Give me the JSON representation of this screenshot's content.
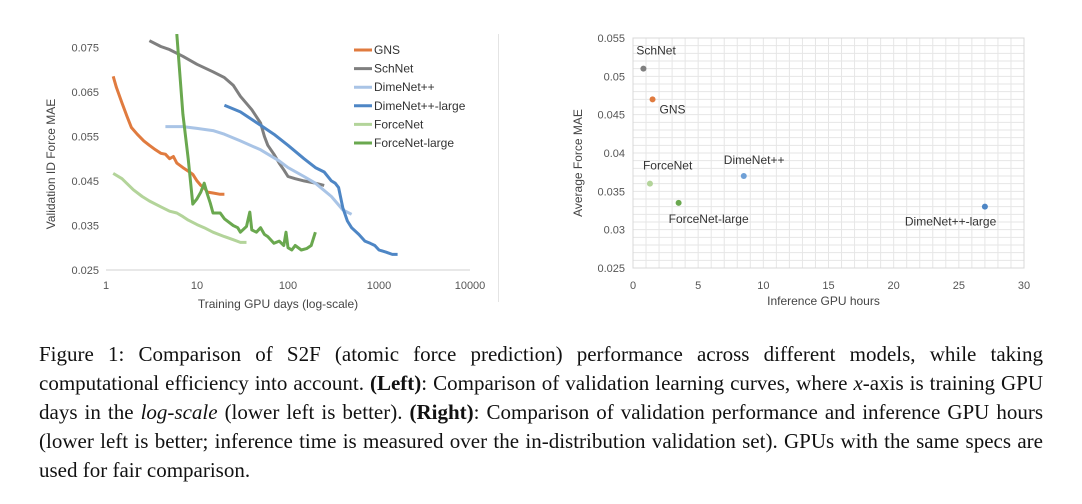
{
  "chart_data": [
    {
      "type": "line",
      "title": "",
      "xlabel": "Training GPU days (log-scale)",
      "ylabel": "Validation ID Force MAE",
      "xscale": "log",
      "xlim": [
        1,
        10000
      ],
      "ylim": [
        0.025,
        0.078
      ],
      "x_ticks": [
        "1",
        "10",
        "100",
        "1000",
        "10000"
      ],
      "y_ticks": [
        "0.025",
        "0.035",
        "0.045",
        "0.055",
        "0.065",
        "0.075"
      ],
      "legend_position": "top-right",
      "series": [
        {
          "name": "GNS",
          "color": "#e07b3f",
          "width": 3,
          "points": [
            [
              1.2,
              0.0685
            ],
            [
              1.3,
              0.066
            ],
            [
              1.5,
              0.0625
            ],
            [
              1.7,
              0.0595
            ],
            [
              1.9,
              0.057
            ],
            [
              2.2,
              0.0555
            ],
            [
              2.6,
              0.054
            ],
            [
              3.0,
              0.053
            ],
            [
              3.5,
              0.052
            ],
            [
              4.0,
              0.0512
            ],
            [
              4.5,
              0.051
            ],
            [
              5,
              0.05
            ],
            [
              5.5,
              0.0505
            ],
            [
              6,
              0.049
            ],
            [
              7,
              0.048
            ],
            [
              8,
              0.0472
            ],
            [
              9,
              0.0465
            ],
            [
              10,
              0.045
            ],
            [
              11,
              0.044
            ],
            [
              12,
              0.0435
            ],
            [
              13,
              0.0425
            ],
            [
              15,
              0.0423
            ],
            [
              18,
              0.042
            ],
            [
              20,
              0.042
            ]
          ]
        },
        {
          "name": "SchNet",
          "color": "#7f7f7f",
          "width": 3,
          "points": [
            [
              3,
              0.0765
            ],
            [
              4,
              0.0752
            ],
            [
              5,
              0.0745
            ],
            [
              7,
              0.073
            ],
            [
              10,
              0.0712
            ],
            [
              15,
              0.0695
            ],
            [
              20,
              0.0682
            ],
            [
              25,
              0.0665
            ],
            [
              30,
              0.064
            ],
            [
              40,
              0.061
            ],
            [
              50,
              0.058
            ],
            [
              55,
              0.055
            ],
            [
              60,
              0.053
            ],
            [
              70,
              0.051
            ],
            [
              80,
              0.049
            ],
            [
              90,
              0.0475
            ],
            [
              100,
              0.046
            ],
            [
              120,
              0.0455
            ],
            [
              150,
              0.045
            ],
            [
              200,
              0.0445
            ],
            [
              250,
              0.044
            ]
          ]
        },
        {
          "name": "DimeNet++",
          "color": "#a9c4e6",
          "width": 3,
          "points": [
            [
              4.5,
              0.0572
            ],
            [
              7,
              0.0572
            ],
            [
              10,
              0.0568
            ],
            [
              15,
              0.0563
            ],
            [
              20,
              0.0555
            ],
            [
              30,
              0.054
            ],
            [
              50,
              0.052
            ],
            [
              80,
              0.0495
            ],
            [
              100,
              0.048
            ],
            [
              150,
              0.046
            ],
            [
              200,
              0.0445
            ],
            [
              300,
              0.0415
            ],
            [
              400,
              0.0385
            ],
            [
              500,
              0.0375
            ]
          ]
        },
        {
          "name": "DimeNet++-large",
          "color": "#4e86c5",
          "width": 3,
          "points": [
            [
              20,
              0.062
            ],
            [
              30,
              0.0605
            ],
            [
              50,
              0.0575
            ],
            [
              70,
              0.0555
            ],
            [
              100,
              0.053
            ],
            [
              150,
              0.05
            ],
            [
              200,
              0.048
            ],
            [
              250,
              0.047
            ],
            [
              300,
              0.045
            ],
            [
              330,
              0.0445
            ],
            [
              360,
              0.0435
            ],
            [
              400,
              0.039
            ],
            [
              450,
              0.036
            ],
            [
              500,
              0.0345
            ],
            [
              600,
              0.033
            ],
            [
              700,
              0.0315
            ],
            [
              800,
              0.031
            ],
            [
              900,
              0.0305
            ],
            [
              1000,
              0.0295
            ],
            [
              1200,
              0.029
            ],
            [
              1400,
              0.0285
            ],
            [
              1600,
              0.0285
            ]
          ]
        },
        {
          "name": "ForceNet",
          "color": "#b3d49a",
          "width": 3,
          "points": [
            [
              1.2,
              0.0467
            ],
            [
              1.5,
              0.0455
            ],
            [
              2,
              0.043
            ],
            [
              2.5,
              0.0415
            ],
            [
              3,
              0.0405
            ],
            [
              4,
              0.0392
            ],
            [
              5,
              0.0382
            ],
            [
              6,
              0.0378
            ],
            [
              7,
              0.037
            ],
            [
              8,
              0.0362
            ],
            [
              10,
              0.0352
            ],
            [
              12,
              0.0345
            ],
            [
              15,
              0.0335
            ],
            [
              20,
              0.0325
            ],
            [
              25,
              0.0318
            ],
            [
              30,
              0.0312
            ],
            [
              35,
              0.0312
            ]
          ]
        },
        {
          "name": "ForceNet-large",
          "color": "#6aa84f",
          "width": 3,
          "points": [
            [
              6,
              0.078
            ],
            [
              7,
              0.06
            ],
            [
              8,
              0.05
            ],
            [
              9,
              0.0398
            ],
            [
              10,
              0.041
            ],
            [
              11,
              0.0425
            ],
            [
              12,
              0.0445
            ],
            [
              13,
              0.042
            ],
            [
              14,
              0.04
            ],
            [
              15,
              0.0378
            ],
            [
              18,
              0.0378
            ],
            [
              20,
              0.0365
            ],
            [
              25,
              0.035
            ],
            [
              28,
              0.0345
            ],
            [
              30,
              0.0335
            ],
            [
              35,
              0.0348
            ],
            [
              38,
              0.038
            ],
            [
              40,
              0.034
            ],
            [
              45,
              0.0335
            ],
            [
              50,
              0.0345
            ],
            [
              55,
              0.033
            ],
            [
              60,
              0.0325
            ],
            [
              70,
              0.031
            ],
            [
              80,
              0.0315
            ],
            [
              90,
              0.0305
            ],
            [
              95,
              0.0335
            ],
            [
              100,
              0.03
            ],
            [
              110,
              0.0295
            ],
            [
              120,
              0.0305
            ],
            [
              140,
              0.0295
            ],
            [
              160,
              0.0298
            ],
            [
              180,
              0.0305
            ],
            [
              200,
              0.0335
            ]
          ]
        }
      ]
    },
    {
      "type": "scatter",
      "title": "",
      "xlabel": "Inference GPU hours",
      "ylabel": "Average Force MAE",
      "xlim": [
        0,
        30
      ],
      "ylim": [
        0.025,
        0.055
      ],
      "x_ticks": [
        "0",
        "5",
        "10",
        "15",
        "20",
        "25",
        "30"
      ],
      "y_ticks": [
        "0.025",
        "0.03",
        "0.035",
        "0.04",
        "0.045",
        "0.05",
        "0.055"
      ],
      "grid": true,
      "points": [
        {
          "name": "SchNet",
          "x": 0.8,
          "y": 0.051,
          "color": "#7f7f7f",
          "label_pos": "above"
        },
        {
          "name": "GNS",
          "x": 1.5,
          "y": 0.047,
          "color": "#e07b3f",
          "label_pos": "below-right"
        },
        {
          "name": "ForceNet",
          "x": 1.3,
          "y": 0.036,
          "color": "#b3d49a",
          "label_pos": "above"
        },
        {
          "name": "DimeNet++",
          "x": 8.5,
          "y": 0.037,
          "color": "#6fa0d6",
          "label_pos": "above-right"
        },
        {
          "name": "ForceNet-large",
          "x": 3.5,
          "y": 0.0335,
          "color": "#6aa84f",
          "label_pos": "below"
        },
        {
          "name": "DimeNet++-large",
          "x": 27,
          "y": 0.033,
          "color": "#4e86c5",
          "label_pos": "below-left"
        }
      ]
    }
  ],
  "caption": {
    "label": "Figure 1:",
    "intro": " Comparison of S2F (atomic force prediction) performance across different models, while taking computational efficiency into account. ",
    "left_tag": "(Left)",
    "left_text_a": ": Comparison of validation learning curves, where ",
    "x_var": "x",
    "left_text_b": "-axis is training GPU days in the ",
    "log_scale": "log-scale",
    "left_text_c": " (lower left is better). ",
    "right_tag": "(Right)",
    "right_text": ": Comparison of validation performance and inference GPU hours (lower left is better; inference time is measured over the in-distribution validation set). GPUs with the same specs are used for fair comparison."
  }
}
